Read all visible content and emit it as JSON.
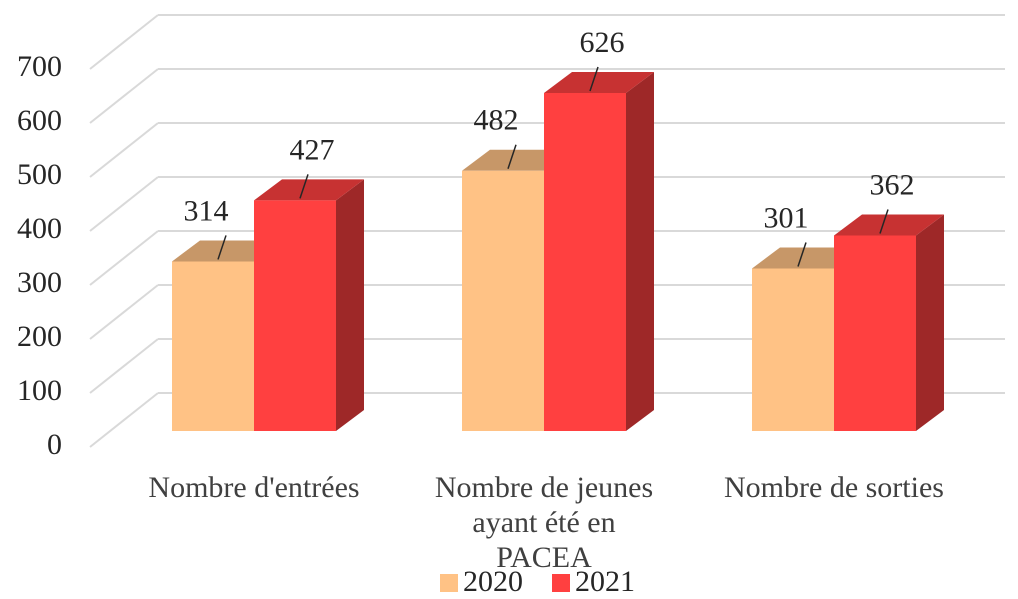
{
  "chart_data": {
    "type": "bar3d",
    "categories": [
      "Nombre d'entrées",
      "Nombre de jeunes ayant été en PACEA",
      "Nombre de sorties"
    ],
    "series": [
      {
        "name": "2020",
        "color": "#ffc285",
        "values": [
          314,
          482,
          301
        ]
      },
      {
        "name": "2021",
        "color": "#ff4040",
        "values": [
          427,
          626,
          362
        ]
      }
    ],
    "ylim": [
      0,
      700
    ],
    "yticks": [
      0,
      100,
      200,
      300,
      400,
      500,
      600,
      700
    ],
    "grid": true,
    "legend": "bottom"
  }
}
